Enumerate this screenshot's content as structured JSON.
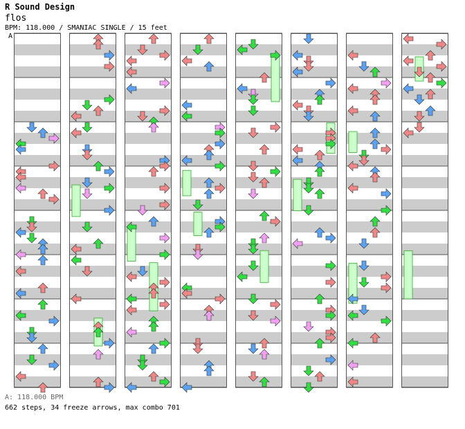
{
  "header": {
    "artist": "R Sound Design",
    "title": "flos",
    "meta": "BPM: 118.000 / SMANIAC SINGLE / 15 feet",
    "marker": "A"
  },
  "footer": {
    "bpm_line": "A: 118.000 BPM",
    "stats": "662 steps, 34 freeze arrows, max combo 701"
  },
  "chart": {
    "columns": 8,
    "lanes": [
      "left",
      "down",
      "up",
      "right"
    ],
    "colors": {
      "left": "#5ba3f0",
      "down": "#33dd44",
      "up": "#ee8888",
      "right": "#ee8888",
      "pink": "#f0a0f0",
      "freeze": "#ccffcc",
      "stripe": "#cccccc",
      "border": "#555555"
    }
  }
}
